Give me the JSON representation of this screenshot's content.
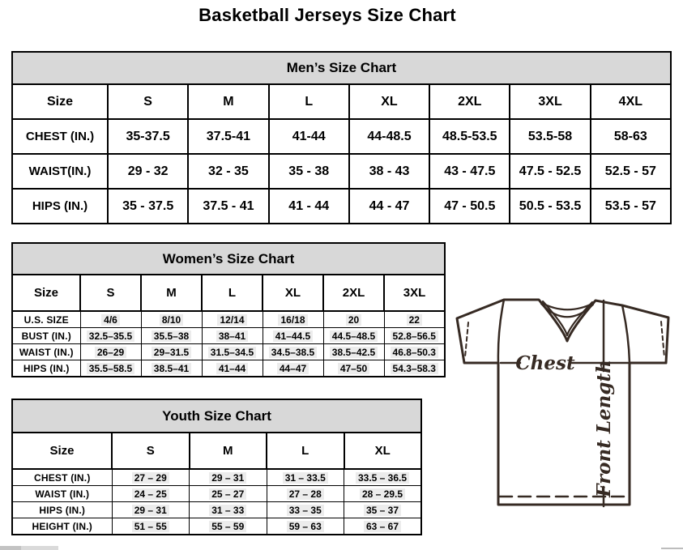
{
  "page": {
    "title": "Basketball Jerseys Size Chart"
  },
  "tables": {
    "mens": {
      "title": "Men’s Size Chart",
      "header": [
        "Size",
        "S",
        "M",
        "L",
        "XL",
        "2XL",
        "3XL",
        "4XL"
      ],
      "rows": [
        [
          "CHEST (IN.)",
          "35-37.5",
          "37.5-41",
          "41-44",
          "44-48.5",
          "48.5-53.5",
          "53.5-58",
          "58-63"
        ],
        [
          "WAIST(IN.)",
          "29 - 32",
          "32 - 35",
          "35 - 38",
          "38 - 43",
          "43 - 47.5",
          "47.5 - 52.5",
          "52.5 - 57"
        ],
        [
          "HIPS (IN.)",
          "35 - 37.5",
          "37.5 - 41",
          "41 - 44",
          "44 - 47",
          "47 - 50.5",
          "50.5 - 53.5",
          "53.5 - 57"
        ]
      ]
    },
    "womens": {
      "title": "Women’s Size Chart",
      "header": [
        "Size",
        "S",
        "M",
        "L",
        "XL",
        "2XL",
        "3XL"
      ],
      "rows": [
        [
          "U.S. SIZE",
          "4/6",
          "8/10",
          "12/14",
          "16/18",
          "20",
          "22"
        ],
        [
          "BUST (IN.)",
          "32.5–35.5",
          "35.5–38",
          "38–41",
          "41–44.5",
          "44.5–48.5",
          "52.8–56.5"
        ],
        [
          "WAIST (IN.)",
          "26–29",
          "29–31.5",
          "31.5–34.5",
          "34.5–38.5",
          "38.5–42.5",
          "46.8–50.3"
        ],
        [
          "HIPS (IN.)",
          "35.5–58.5",
          "38.5–41",
          "41–44",
          "44–47",
          "47–50",
          "54.3–58.3"
        ]
      ]
    },
    "youth": {
      "title": "Youth Size Chart",
      "header": [
        "Size",
        "S",
        "M",
        "L",
        "XL"
      ],
      "rows": [
        [
          "CHEST (IN.)",
          "27 – 29",
          "29 – 31",
          "31 – 33.5",
          "33.5 – 36.5"
        ],
        [
          "WAIST (IN.)",
          "24 – 25",
          "25 – 27",
          "27 – 28",
          "28 – 29.5"
        ],
        [
          "HIPS (IN.)",
          "29 – 31",
          "31 – 33",
          "33 – 35",
          "35 – 37"
        ],
        [
          "HEIGHT (IN.)",
          "51 – 55",
          "55 – 59",
          "59 – 63",
          "63 – 67"
        ]
      ]
    }
  },
  "diagram": {
    "chest_label": "Chest",
    "front_length_label": "Front Length"
  },
  "colors": {
    "table_band_gray": "#d8d8d8",
    "table_border": "#000000",
    "jersey_outline": "#362a23",
    "value_highlight": "#ececec"
  }
}
